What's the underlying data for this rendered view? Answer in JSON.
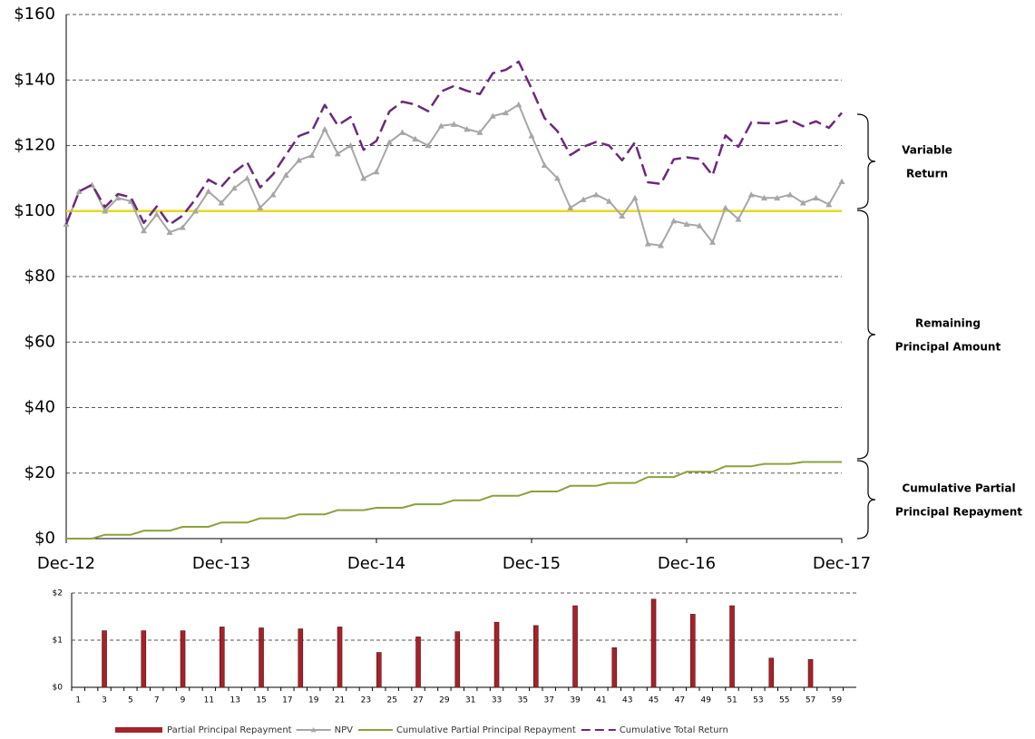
{
  "chart_data": [
    {
      "type": "line",
      "x": [
        0,
        1,
        2,
        3,
        4,
        5,
        6,
        7,
        8,
        9,
        10,
        11,
        12,
        13,
        14,
        15,
        16,
        17,
        18,
        19,
        20,
        21,
        22,
        23,
        24,
        25,
        26,
        27,
        28,
        29,
        30,
        31,
        32,
        33,
        34,
        35,
        36,
        37,
        38,
        39,
        40,
        41,
        42,
        43,
        44,
        45,
        46,
        47,
        48,
        49,
        50,
        51,
        52,
        53,
        54,
        55,
        56,
        57,
        58,
        59,
        60
      ],
      "xlim": [
        0,
        60
      ],
      "xticks": [
        {
          "value": 0,
          "label": "Dec-12"
        },
        {
          "value": 12,
          "label": "Dec-13"
        },
        {
          "value": 24,
          "label": "Dec-14"
        },
        {
          "value": 36,
          "label": "Dec-15"
        },
        {
          "value": 48,
          "label": "Dec-16"
        },
        {
          "value": 60,
          "label": "Dec-17"
        }
      ],
      "ylim": [
        0,
        160
      ],
      "yticks": [
        {
          "value": 0,
          "label": "$0"
        },
        {
          "value": 20,
          "label": "$20"
        },
        {
          "value": 40,
          "label": "$40"
        },
        {
          "value": 60,
          "label": "$60"
        },
        {
          "value": 80,
          "label": "$80"
        },
        {
          "value": 100,
          "label": "$100"
        },
        {
          "value": 120,
          "label": "$120"
        },
        {
          "value": 140,
          "label": "$140"
        },
        {
          "value": 160,
          "label": "$160"
        }
      ],
      "grid": true,
      "reference_line": {
        "value": 100,
        "color": "#e8d820"
      },
      "series": [
        {
          "name": "NPV",
          "color": "#a6a6a6",
          "marker": "triangle",
          "values": [
            96,
            106,
            108,
            100,
            104,
            103,
            94,
            99,
            93.5,
            95,
            100,
            106,
            102.5,
            107,
            110,
            101,
            105,
            111,
            115.5,
            117,
            125,
            117.5,
            120,
            110,
            112,
            121,
            124,
            122,
            120,
            126,
            126.5,
            125,
            124,
            129,
            130,
            132.5,
            123,
            114,
            110,
            101,
            103.5,
            105,
            103,
            98.5,
            104,
            90,
            89.5,
            97,
            96,
            95.5,
            90.5,
            101,
            97.5,
            105,
            104,
            104,
            105,
            102.5,
            104,
            102,
            109
          ]
        },
        {
          "name": "Cumulative Partial Principal Repayment",
          "color": "#8aa23a",
          "values": [
            0,
            0,
            0,
            1.2,
            1.2,
            1.2,
            2.4,
            2.4,
            2.4,
            3.6,
            3.6,
            3.6,
            4.9,
            4.9,
            4.9,
            6.2,
            6.2,
            6.2,
            7.4,
            7.4,
            7.4,
            8.7,
            8.7,
            8.7,
            9.4,
            9.4,
            9.4,
            10.5,
            10.5,
            10.5,
            11.7,
            11.7,
            11.7,
            13.1,
            13.1,
            13.1,
            14.4,
            14.4,
            14.4,
            16.1,
            16.1,
            16.1,
            17,
            17,
            17,
            18.8,
            18.8,
            18.8,
            20.4,
            20.4,
            20.4,
            22.1,
            22.1,
            22.1,
            22.8,
            22.8,
            22.8,
            23.4,
            23.4,
            23.4,
            23.4
          ]
        },
        {
          "name": "Cumulative Total Return",
          "color": "#6a2a7a",
          "dash": true,
          "values": [
            96,
            106,
            108,
            101.2,
            105.2,
            104.2,
            96.4,
            101.4,
            95.9,
            98.6,
            103.6,
            109.6,
            107.4,
            111.9,
            114.9,
            107.2,
            111.2,
            117.2,
            122.9,
            124.4,
            132.4,
            126.2,
            128.7,
            118.7,
            121.4,
            130.4,
            133.4,
            132.5,
            130.5,
            136.5,
            138.2,
            136.7,
            135.7,
            142.1,
            143.1,
            145.6,
            137.4,
            128.4,
            124.4,
            117.1,
            119.6,
            121.1,
            120,
            115.5,
            121,
            108.8,
            108.3,
            115.8,
            116.4,
            115.9,
            110.9,
            123.1,
            119.6,
            127.1,
            126.8,
            126.8,
            127.8,
            125.9,
            127.4,
            125.4,
            130
          ]
        }
      ],
      "annotations": [
        {
          "lines": [
            "Variable",
            "Return"
          ]
        },
        {
          "lines": [
            "Remaining",
            "Principal Amount"
          ]
        },
        {
          "lines": [
            "Cumulative Partial",
            "Principal Repayment"
          ]
        }
      ]
    },
    {
      "type": "bar",
      "categories": [
        1,
        null,
        3,
        null,
        5,
        null,
        7,
        null,
        9,
        null,
        11,
        null,
        13,
        null,
        15,
        null,
        17,
        null,
        19,
        null,
        21,
        null,
        23,
        null,
        25,
        null,
        27,
        null,
        29,
        null,
        31,
        null,
        33,
        null,
        35,
        null,
        37,
        null,
        39,
        null,
        41,
        null,
        43,
        null,
        45,
        null,
        47,
        null,
        49,
        null,
        51,
        null,
        53,
        null,
        55,
        null,
        57,
        null,
        59,
        null
      ],
      "ylim": [
        0,
        2
      ],
      "yticks": [
        {
          "value": 0,
          "label": "$0"
        },
        {
          "value": 1,
          "label": "$1"
        },
        {
          "value": 2,
          "label": "$2"
        }
      ],
      "grid": true,
      "series": [
        {
          "name": "Partial Principal Repayment",
          "color": "#a3232a",
          "values": [
            null,
            null,
            1.2,
            null,
            null,
            1.2,
            null,
            null,
            1.2,
            null,
            null,
            1.28,
            null,
            null,
            1.26,
            null,
            null,
            1.24,
            null,
            null,
            1.28,
            null,
            null,
            0.74,
            null,
            null,
            1.07,
            null,
            null,
            1.18,
            null,
            null,
            1.38,
            null,
            null,
            1.31,
            null,
            null,
            1.73,
            null,
            null,
            0.84,
            null,
            null,
            1.87,
            null,
            null,
            1.55,
            null,
            null,
            1.73,
            null,
            null,
            0.62,
            null,
            null,
            0.59,
            null,
            null,
            null
          ]
        }
      ]
    }
  ]
}
